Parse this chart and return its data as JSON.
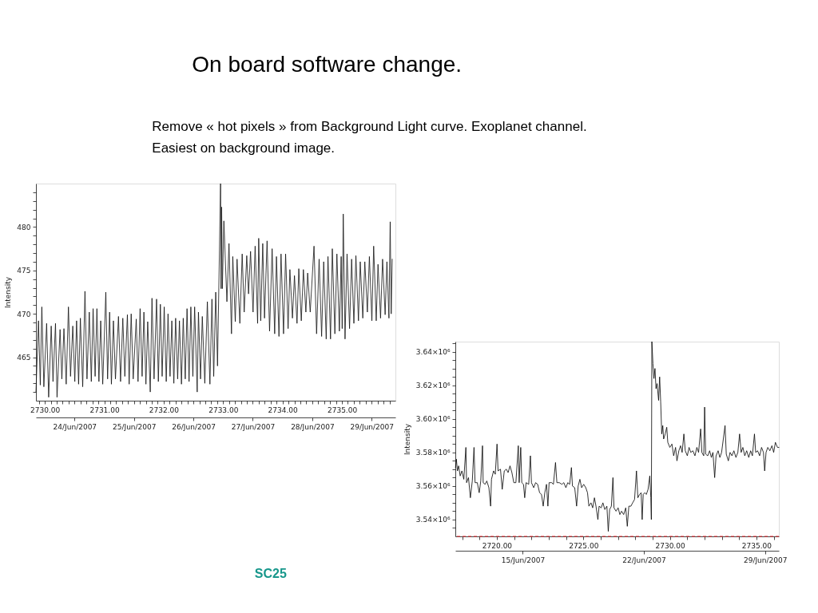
{
  "chart_data": [
    {
      "type": "line",
      "title": "On board software change.",
      "subtitle": "Remove « hot pixels » from Background Light curve. Exoplanet channel.\nEasiest on background image.",
      "annotations": [
        "SC25"
      ],
      "ylabel": "Intensity",
      "x": [
        2729.85,
        2729.893,
        2729.923,
        2729.949,
        2729.983,
        2730.03,
        2730.064,
        2730.107,
        2730.137,
        2730.179,
        2730.205,
        2730.256,
        2730.286,
        2730.321,
        2730.359,
        2730.397,
        2730.432,
        2730.47,
        2730.504,
        2730.534,
        2730.568,
        2730.598,
        2730.637,
        2730.675,
        2730.709,
        2730.748,
        2730.782,
        2730.812,
        2730.846,
        2730.876,
        2730.91,
        2730.94,
        2730.974,
        2731.026,
        2731.056,
        2731.09,
        2731.12,
        2731.154,
        2731.188,
        2731.239,
        2731.274,
        2731.312,
        2731.346,
        2731.389,
        2731.419,
        2731.453,
        2731.487,
        2731.538,
        2731.568,
        2731.603,
        2731.637,
        2731.667,
        2731.701,
        2731.731,
        2731.774,
        2731.803,
        2731.838,
        2731.88,
        2731.91,
        2731.944,
        2731.974,
        2732.009,
        2732.043,
        2732.073,
        2732.107,
        2732.137,
        2732.171,
        2732.201,
        2732.235,
        2732.265,
        2732.299,
        2732.329,
        2732.363,
        2732.393,
        2732.427,
        2732.457,
        2732.491,
        2732.521,
        2732.564,
        2732.585,
        2732.62,
        2732.65,
        2732.692,
        2732.735,
        2732.778,
        2732.812,
        2732.842,
        2732.876,
        2732.906,
        2732.957,
        2732.966,
        2732.975,
        2732.987,
        2733.013,
        2733.064,
        2733.099,
        2733.141,
        2733.163,
        2733.205,
        2733.235,
        2733.282,
        2733.321,
        2733.355,
        2733.398,
        2733.428,
        2733.462,
        2733.504,
        2733.539,
        2733.581,
        2733.599,
        2733.633,
        2733.667,
        2733.697,
        2733.74,
        2733.782,
        2733.825,
        2733.868,
        2733.898,
        2733.94,
        2733.975,
        2734.017,
        2734.052,
        2734.094,
        2734.124,
        2734.167,
        2734.201,
        2734.244,
        2734.274,
        2734.316,
        2734.351,
        2734.393,
        2734.423,
        2734.466,
        2734.53,
        2734.573,
        2734.616,
        2734.658,
        2734.693,
        2734.735,
        2734.765,
        2734.808,
        2734.838,
        2734.881,
        2734.915,
        2734.957,
        2734.987,
        2735.004,
        2735.022,
        2735.052,
        2735.086,
        2735.128,
        2735.163,
        2735.201,
        2735.235,
        2735.278,
        2735.308,
        2735.351,
        2735.385,
        2735.428,
        2735.462,
        2735.504,
        2735.534,
        2735.577,
        2735.607,
        2735.65,
        2735.684,
        2735.727,
        2735.757,
        2735.791,
        2735.812,
        2735.829,
        2735.846
      ],
      "series": [
        {
          "color": "#111111",
          "values": [
            461.0,
            469.2,
            461.8,
            470.8,
            461.6,
            468.9,
            460.4,
            468.6,
            462.2,
            468.9,
            460.4,
            468.2,
            462.5,
            468.3,
            461.9,
            470.8,
            462.8,
            468.6,
            462.2,
            469.2,
            461.9,
            469.5,
            461.6,
            472.6,
            462.5,
            470.2,
            462.2,
            470.6,
            462.8,
            470.6,
            462.2,
            469.2,
            461.9,
            472.5,
            462.5,
            470.2,
            461.9,
            469.2,
            462.5,
            469.7,
            462.2,
            469.5,
            462.8,
            469.9,
            461.9,
            470.0,
            462.5,
            469.4,
            462.2,
            470.6,
            462.8,
            470.2,
            461.9,
            469.1,
            461.0,
            471.8,
            462.5,
            471.7,
            462.2,
            471.1,
            462.8,
            470.8,
            462.2,
            470.0,
            462.8,
            469.2,
            462.0,
            469.5,
            462.5,
            469.2,
            461.9,
            469.5,
            462.5,
            470.6,
            462.2,
            470.8,
            462.8,
            470.8,
            461.0,
            470.2,
            462.5,
            469.7,
            462.0,
            471.4,
            461.9,
            471.7,
            462.8,
            472.5,
            464.0,
            485.0,
            472.9,
            482.3,
            472.9,
            480.7,
            471.4,
            478.1,
            467.7,
            476.6,
            469.1,
            476.3,
            468.9,
            476.9,
            470.2,
            476.7,
            472.3,
            477.2,
            470.2,
            477.8,
            468.9,
            478.7,
            469.2,
            478.1,
            469.5,
            478.4,
            468.0,
            477.5,
            467.7,
            476.6,
            467.4,
            476.9,
            467.7,
            476.9,
            468.3,
            475.1,
            469.5,
            474.4,
            468.9,
            475.2,
            469.2,
            475.1,
            470.2,
            474.7,
            470.2,
            477.8,
            467.7,
            476.3,
            467.4,
            476.0,
            467.1,
            476.6,
            467.1,
            477.5,
            467.7,
            476.9,
            468.0,
            476.6,
            468.3,
            481.5,
            467.1,
            476.9,
            468.3,
            476.3,
            468.9,
            476.7,
            469.2,
            476.0,
            469.5,
            476.0,
            470.2,
            476.6,
            469.2,
            477.8,
            469.2,
            475.7,
            469.5,
            476.3,
            469.9,
            476.0,
            469.5,
            480.6,
            470.0,
            476.3
          ]
        }
      ],
      "xlim": [
        2729.85,
        2735.9
      ],
      "ylim": [
        460,
        485
      ],
      "xticks": [
        {
          "value": 2729.9,
          "label": null
        },
        {
          "value": 2730,
          "label": "2730.00"
        },
        {
          "value": 2730.1,
          "label": null
        },
        {
          "value": 2730.2,
          "label": null
        },
        {
          "value": 2730.3,
          "label": null
        },
        {
          "value": 2730.4,
          "label": null
        },
        {
          "value": 2730.5,
          "label": null
        },
        {
          "value": 2730.6,
          "label": null
        },
        {
          "value": 2730.7,
          "label": null
        },
        {
          "value": 2730.8,
          "label": null
        },
        {
          "value": 2730.9,
          "label": null
        },
        {
          "value": 2731,
          "label": "2731.00"
        },
        {
          "value": 2731.1,
          "label": null
        },
        {
          "value": 2731.2,
          "label": null
        },
        {
          "value": 2731.3,
          "label": null
        },
        {
          "value": 2731.4,
          "label": null
        },
        {
          "value": 2731.5,
          "label": null
        },
        {
          "value": 2731.6,
          "label": null
        },
        {
          "value": 2731.7,
          "label": null
        },
        {
          "value": 2731.8,
          "label": null
        },
        {
          "value": 2731.9,
          "label": null
        },
        {
          "value": 2732,
          "label": "2732.00"
        },
        {
          "value": 2732.1,
          "label": null
        },
        {
          "value": 2732.2,
          "label": null
        },
        {
          "value": 2732.3,
          "label": null
        },
        {
          "value": 2732.4,
          "label": null
        },
        {
          "value": 2732.5,
          "label": null
        },
        {
          "value": 2732.6,
          "label": null
        },
        {
          "value": 2732.7,
          "label": null
        },
        {
          "value": 2732.8,
          "label": null
        },
        {
          "value": 2732.9,
          "label": null
        },
        {
          "value": 2733,
          "label": "2733.00"
        },
        {
          "value": 2733.1,
          "label": null
        },
        {
          "value": 2733.2,
          "label": null
        },
        {
          "value": 2733.3,
          "label": null
        },
        {
          "value": 2733.4,
          "label": null
        },
        {
          "value": 2733.5,
          "label": null
        },
        {
          "value": 2733.6,
          "label": null
        },
        {
          "value": 2733.7,
          "label": null
        },
        {
          "value": 2733.8,
          "label": null
        },
        {
          "value": 2733.9,
          "label": null
        },
        {
          "value": 2734,
          "label": "2734.00"
        },
        {
          "value": 2734.1,
          "label": null
        },
        {
          "value": 2734.2,
          "label": null
        },
        {
          "value": 2734.3,
          "label": null
        },
        {
          "value": 2734.4,
          "label": null
        },
        {
          "value": 2734.5,
          "label": null
        },
        {
          "value": 2734.6,
          "label": null
        },
        {
          "value": 2734.7,
          "label": null
        },
        {
          "value": 2734.8,
          "label": null
        },
        {
          "value": 2734.9,
          "label": null
        },
        {
          "value": 2735,
          "label": "2735.00"
        },
        {
          "value": 2735.1,
          "label": null
        },
        {
          "value": 2735.2,
          "label": null
        },
        {
          "value": 2735.3,
          "label": null
        },
        {
          "value": 2735.4,
          "label": null
        },
        {
          "value": 2735.5,
          "label": null
        },
        {
          "value": 2735.6,
          "label": null
        },
        {
          "value": 2735.7,
          "label": null
        },
        {
          "value": 2735.8,
          "label": null
        }
      ],
      "yticks": [
        {
          "value": 461,
          "label": null
        },
        {
          "value": 462,
          "label": null
        },
        {
          "value": 463,
          "label": null
        },
        {
          "value": 464,
          "label": null
        },
        465,
        {
          "value": 466,
          "label": null
        },
        {
          "value": 467,
          "label": null
        },
        {
          "value": 468,
          "label": null
        },
        {
          "value": 469,
          "label": null
        },
        470,
        {
          "value": 471,
          "label": null
        },
        {
          "value": 472,
          "label": null
        },
        {
          "value": 473,
          "label": null
        },
        {
          "value": 474,
          "label": null
        },
        475,
        {
          "value": 476,
          "label": null
        },
        {
          "value": 477,
          "label": null
        },
        {
          "value": 478,
          "label": null
        },
        {
          "value": 479,
          "label": null
        },
        480,
        {
          "value": 481,
          "label": null
        },
        {
          "value": 482,
          "label": null
        },
        {
          "value": 483,
          "label": null
        },
        {
          "value": 484,
          "label": null
        }
      ],
      "x2lim": [
        "2007-06-23T08:24",
        "2007-06-29T09:36"
      ],
      "x2ticks": [
        {
          "value": "2007-06-24",
          "label": "24/Jun/2007"
        },
        {
          "value": "2007-06-25",
          "label": "25/Jun/2007"
        },
        {
          "value": "2007-06-26",
          "label": "26/Jun/2007"
        },
        {
          "value": "2007-06-27",
          "label": "27/Jun/2007"
        },
        {
          "value": "2007-06-28",
          "label": "28/Jun/2007"
        },
        {
          "value": "2007-06-29",
          "label": "29/Jun/2007"
        }
      ]
    },
    {
      "type": "line",
      "ylabel": "Intensity",
      "x": [
        2717.61,
        2717.66,
        2717.72,
        2717.79,
        2717.88,
        2717.98,
        2718.09,
        2718.21,
        2718.25,
        2718.36,
        2718.47,
        2718.58,
        2718.68,
        2718.74,
        2718.87,
        2718.98,
        2719.07,
        2719.17,
        2719.21,
        2719.32,
        2719.42,
        2719.54,
        2719.64,
        2719.69,
        2719.81,
        2719.91,
        2720.01,
        2720.07,
        2720.21,
        2720.31,
        2720.43,
        2720.55,
        2720.65,
        2720.76,
        2720.87,
        2720.98,
        2721.1,
        2721.24,
        2721.29,
        2721.38,
        2721.44,
        2721.54,
        2721.61,
        2721.69,
        2721.84,
        2721.94,
        2722.0,
        2722.13,
        2722.24,
        2722.36,
        2722.47,
        2722.58,
        2722.68,
        2722.77,
        2722.87,
        2722.95,
        2723.02,
        2723.17,
        2723.27,
        2723.39,
        2723.47,
        2723.61,
        2723.76,
        2723.87,
        2723.99,
        2724.1,
        2724.21,
        2724.31,
        2724.37,
        2724.5,
        2724.61,
        2724.7,
        2724.8,
        2724.9,
        2725.02,
        2725.14,
        2725.24,
        2725.32,
        2725.44,
        2725.54,
        2725.64,
        2725.73,
        2725.84,
        2725.91,
        2726.03,
        2726.13,
        2726.24,
        2726.36,
        2726.44,
        2726.52,
        2726.62,
        2726.71,
        2726.77,
        2726.89,
        2727.01,
        2727.11,
        2727.21,
        2727.33,
        2727.45,
        2727.54,
        2727.63,
        2727.75,
        2727.85,
        2727.96,
        2728.07,
        2728.15,
        2728.25,
        2728.34,
        2728.4,
        2728.46,
        2728.55,
        2728.64,
        2728.74,
        2728.84,
        2728.9,
        2728.93,
        2728.96,
        2729.02,
        2729.08,
        2729.14,
        2729.2,
        2729.26,
        2729.35,
        2729.41,
        2729.47,
        2729.53,
        2729.59,
        2729.64,
        2729.73,
        2729.82,
        2729.88,
        2730.0,
        2730.12,
        2730.22,
        2730.33,
        2730.41,
        2730.52,
        2730.62,
        2730.71,
        2730.81,
        2730.89,
        2731.01,
        2731.11,
        2731.21,
        2731.33,
        2731.45,
        2731.56,
        2731.66,
        2731.78,
        2731.85,
        2731.96,
        2732.01,
        2732.07,
        2732.19,
        2732.3,
        2732.4,
        2732.49,
        2732.59,
        2732.67,
        2732.79,
        2732.89,
        2732.99,
        2733.19,
        2733.26,
        2733.38,
        2733.48,
        2733.59,
        2733.7,
        2733.82,
        2733.93,
        2734.03,
        2734.12,
        2734.22,
        2734.33,
        2734.44,
        2734.56,
        2734.67,
        2734.77,
        2734.89,
        2734.96,
        2735.07,
        2735.19,
        2735.3,
        2735.41,
        2735.48,
        2735.56,
        2735.66,
        2735.78,
        2735.9,
        2736.0,
        2736.1,
        2736.22,
        2736.3
      ],
      "series": [
        {
          "color": "#000000",
          "values": [
            3571000,
            3576000,
            3569000,
            3572000,
            3566000,
            3569000,
            3564000,
            3583000,
            3562000,
            3565000,
            3553000,
            3563000,
            3583000,
            3562000,
            3562000,
            3556000,
            3563000,
            3584000,
            3562000,
            3561000,
            3563000,
            3559000,
            3548000,
            3564000,
            3569000,
            3567000,
            3585000,
            3569000,
            3570000,
            3558000,
            3569000,
            3570000,
            3568000,
            3572000,
            3568000,
            3562000,
            3562000,
            3584000,
            3562000,
            3583000,
            3562000,
            3561000,
            3553000,
            3562000,
            3561000,
            3578000,
            3562000,
            3559000,
            3562000,
            3561000,
            3556000,
            3555000,
            3548000,
            3556000,
            3561000,
            3548000,
            3562000,
            3562000,
            3561000,
            3574000,
            3562000,
            3562000,
            3561000,
            3562000,
            3559000,
            3562000,
            3561000,
            3571000,
            3560000,
            3559000,
            3548000,
            3560000,
            3564000,
            3559000,
            3561000,
            3559000,
            3556000,
            3548000,
            3550000,
            3547000,
            3553000,
            3548000,
            3540000,
            3548000,
            3547000,
            3550000,
            3546000,
            3548000,
            3533000,
            3546000,
            3548000,
            3565000,
            3547000,
            3545000,
            3547000,
            3543000,
            3545000,
            3543000,
            3547000,
            3536000,
            3548000,
            3548000,
            3550000,
            3552000,
            3569000,
            3553000,
            3555000,
            3556000,
            3540000,
            3555000,
            3556000,
            3555000,
            3558000,
            3566000,
            3553000,
            3540000,
            3646000,
            3633000,
            3624000,
            3630000,
            3618000,
            3621000,
            3611000,
            3625000,
            3610000,
            3591000,
            3596000,
            3588000,
            3591000,
            3595000,
            3586000,
            3583000,
            3585000,
            3578000,
            3583000,
            3575000,
            3581000,
            3584000,
            3580000,
            3591000,
            3581000,
            3578000,
            3583000,
            3580000,
            3581000,
            3578000,
            3583000,
            3580000,
            3594000,
            3580000,
            3578000,
            3607000,
            3579000,
            3578000,
            3581000,
            3577000,
            3580000,
            3565000,
            3578000,
            3581000,
            3577000,
            3580000,
            3596000,
            3579000,
            3575000,
            3580000,
            3578000,
            3581000,
            3577000,
            3580000,
            3591000,
            3580000,
            3583000,
            3578000,
            3581000,
            3577000,
            3581000,
            3578000,
            3591000,
            3580000,
            3581000,
            3578000,
            3583000,
            3580000,
            3569000,
            3580000,
            3583000,
            3581000,
            3584000,
            3580000,
            3586000,
            3583000,
            3583000
          ]
        }
      ],
      "xlim": [
        2717.6,
        2736.3
      ],
      "ylim": [
        3530000,
        3646000
      ],
      "xticks": [
        {
          "value": 2718,
          "label": null
        },
        {
          "value": 2719,
          "label": null
        },
        {
          "value": 2720,
          "label": "2720.00"
        },
        {
          "value": 2721,
          "label": null
        },
        {
          "value": 2722,
          "label": null
        },
        {
          "value": 2723,
          "label": null
        },
        {
          "value": 2724,
          "label": null
        },
        {
          "value": 2725,
          "label": "2725.00"
        },
        {
          "value": 2726,
          "label": null
        },
        {
          "value": 2727,
          "label": null
        },
        {
          "value": 2728,
          "label": null
        },
        {
          "value": 2729,
          "label": null
        },
        {
          "value": 2730,
          "label": "2730.00"
        },
        {
          "value": 2731,
          "label": null
        },
        {
          "value": 2732,
          "label": null
        },
        {
          "value": 2733,
          "label": null
        },
        {
          "value": 2734,
          "label": null
        },
        {
          "value": 2735,
          "label": "2735.00"
        },
        {
          "value": 2736,
          "label": null
        }
      ],
      "yticks": [
        {
          "value": 3535000,
          "label": null
        },
        {
          "value": 3540000,
          "label": "3.54×10⁶"
        },
        {
          "value": 3545000,
          "label": null
        },
        {
          "value": 3550000,
          "label": null
        },
        {
          "value": 3555000,
          "label": null
        },
        {
          "value": 3560000,
          "label": "3.56×10⁶"
        },
        {
          "value": 3565000,
          "label": null
        },
        {
          "value": 3570000,
          "label": null
        },
        {
          "value": 3575000,
          "label": null
        },
        {
          "value": 3580000,
          "label": "3.58×10⁶"
        },
        {
          "value": 3585000,
          "label": null
        },
        {
          "value": 3590000,
          "label": null
        },
        {
          "value": 3595000,
          "label": null
        },
        {
          "value": 3600000,
          "label": "3.60×10⁶"
        },
        {
          "value": 3605000,
          "label": null
        },
        {
          "value": 3610000,
          "label": null
        },
        {
          "value": 3615000,
          "label": null
        },
        {
          "value": 3620000,
          "label": "3.62×10⁶"
        },
        {
          "value": 3625000,
          "label": null
        },
        {
          "value": 3630000,
          "label": null
        },
        {
          "value": 3635000,
          "label": null
        },
        {
          "value": 3640000,
          "label": "3.64×10⁶"
        },
        {
          "value": 3645000,
          "label": null
        }
      ],
      "x2lim": [
        "2007-06-11T02:24",
        "2007-06-29T19:12"
      ],
      "x2ticks": [
        {
          "value": "2007-06-15",
          "label": "15/Jun/2007"
        },
        {
          "value": "2007-06-22",
          "label": "22/Jun/2007"
        },
        {
          "value": "2007-06-29",
          "label": "29/Jun/2007"
        }
      ],
      "ref_lines": [
        {
          "axis": "y",
          "value": 3530000,
          "color": "#e3262b",
          "line_style": "dashed"
        }
      ]
    }
  ]
}
